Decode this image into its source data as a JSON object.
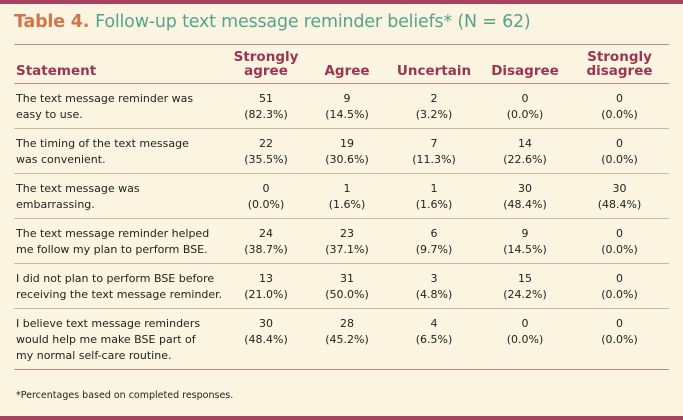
{
  "title": {
    "label": "Table 4.",
    "text": "Follow-up text message reminder beliefs* (N = 62)"
  },
  "headers": {
    "statement": "Statement",
    "strongly_agree": [
      "Strongly",
      "agree"
    ],
    "agree": "Agree",
    "uncertain": "Uncertain",
    "disagree": "Disagree",
    "strongly_disagree": [
      "Strongly",
      "disagree"
    ]
  },
  "rows": [
    {
      "statement": [
        "The text message reminder was",
        "easy to use."
      ],
      "cells": [
        [
          "51",
          "(82.3%)"
        ],
        [
          "9",
          "(14.5%)"
        ],
        [
          "2",
          "(3.2%)"
        ],
        [
          "0",
          "(0.0%)"
        ],
        [
          "0",
          "(0.0%)"
        ]
      ]
    },
    {
      "statement": [
        "The timing of the text message",
        "was convenient."
      ],
      "cells": [
        [
          "22",
          "(35.5%)"
        ],
        [
          "19",
          "(30.6%)"
        ],
        [
          "7",
          "(11.3%)"
        ],
        [
          "14",
          "(22.6%)"
        ],
        [
          "0",
          "(0.0%)"
        ]
      ]
    },
    {
      "statement": [
        "The text message was",
        "embarrassing."
      ],
      "cells": [
        [
          "0",
          "(0.0%)"
        ],
        [
          "1",
          "(1.6%)"
        ],
        [
          "1",
          "(1.6%)"
        ],
        [
          "30",
          "(48.4%)"
        ],
        [
          "30",
          "(48.4%)"
        ]
      ]
    },
    {
      "statement": [
        "The text message reminder helped",
        "me follow my plan to perform BSE."
      ],
      "cells": [
        [
          "24",
          "(38.7%)"
        ],
        [
          "23",
          "(37.1%)"
        ],
        [
          "6",
          "(9.7%)"
        ],
        [
          "9",
          "(14.5%)"
        ],
        [
          "0",
          "(0.0%)"
        ]
      ]
    },
    {
      "statement": [
        "I did not plan to perform BSE before",
        "receiving the text message reminder."
      ],
      "cells": [
        [
          "13",
          "(21.0%)"
        ],
        [
          "31",
          "(50.0%)"
        ],
        [
          "3",
          "(4.8%)"
        ],
        [
          "15",
          "(24.2%)"
        ],
        [
          "0",
          "(0.0%)"
        ]
      ]
    },
    {
      "statement": [
        "I believe text message reminders",
        "would help me make BSE part of",
        "my normal self-care routine."
      ],
      "cells": [
        [
          "30",
          "(48.4%)"
        ],
        [
          "28",
          "(45.2%)"
        ],
        [
          "4",
          "(6.5%)"
        ],
        [
          "0",
          "(0.0%)"
        ],
        [
          "0",
          "(0.0%)"
        ]
      ]
    }
  ],
  "footnote": "*Percentages based on completed responses.",
  "colors": {
    "border": "#a9425e",
    "title_label": "#d0764a",
    "title_text": "#54a48c",
    "header_text": "#9b3552",
    "background": "#fbf4e0"
  }
}
